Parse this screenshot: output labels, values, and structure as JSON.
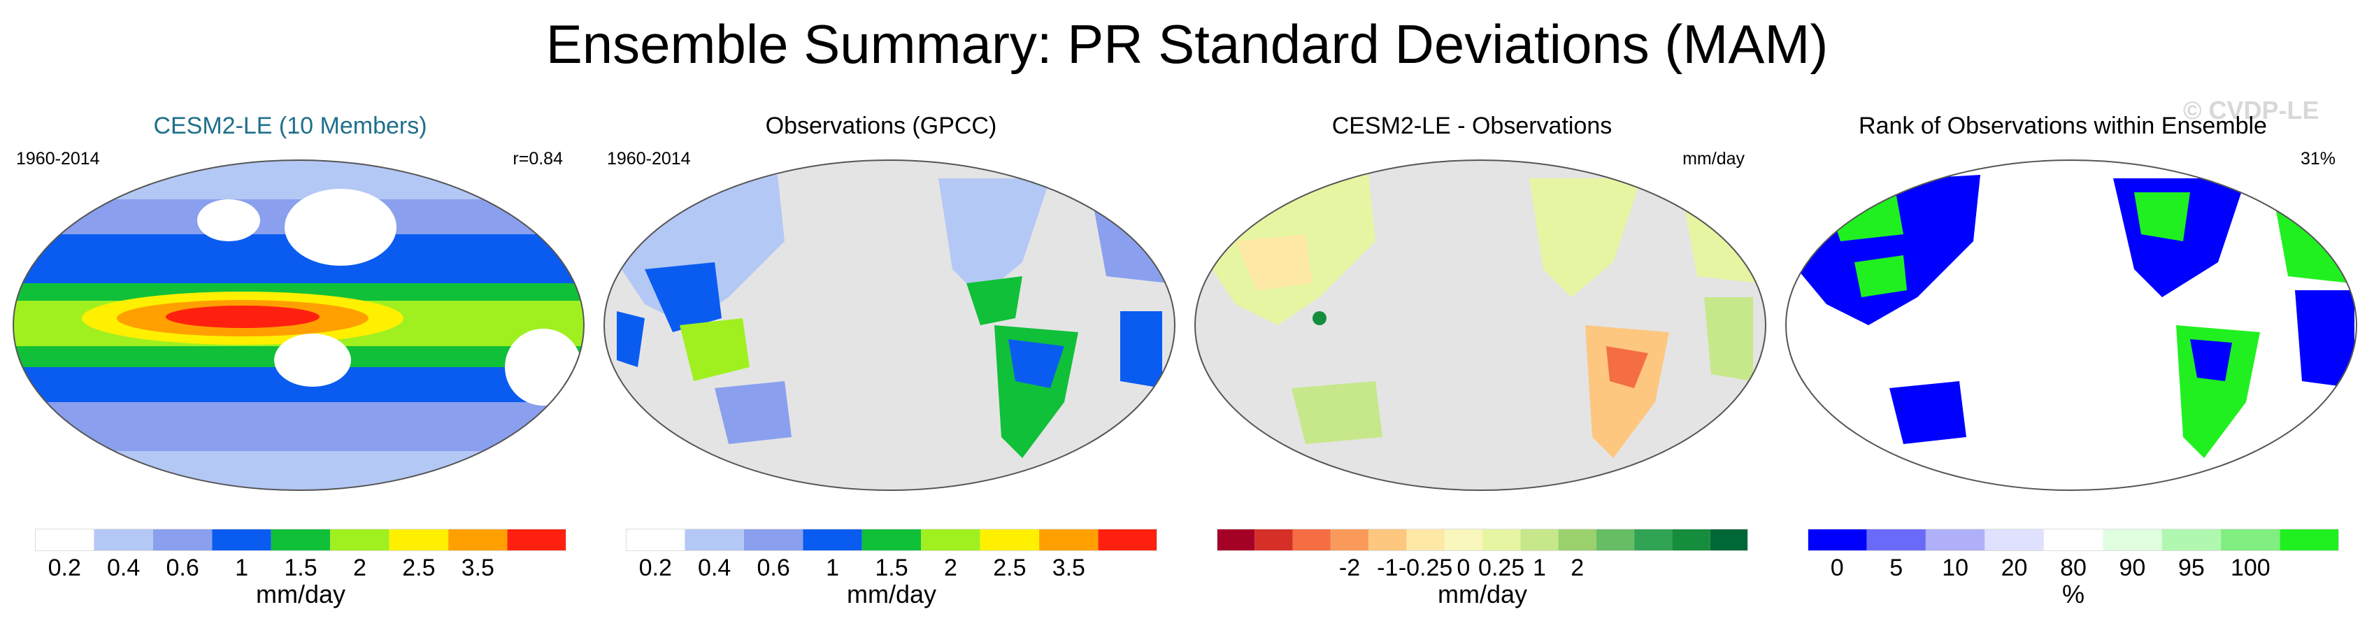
{
  "title": "Ensemble Summary: PR Standard Deviations (MAM)",
  "watermark": "© CVDP-LE",
  "colors": {
    "ocean_missing": "#e4e4e4",
    "coast": "#555555",
    "land_na": "#ffffff"
  },
  "panels": [
    {
      "id": "cesm",
      "title": "CESM2-LE (10 Members)",
      "left_label": "1960-2014",
      "right_label": "r=0.84",
      "unit": "mm/day",
      "colorbar": {
        "colors": [
          "#ffffff",
          "#b4c8f5",
          "#8aa0ee",
          "#0a5cf0",
          "#10c038",
          "#a0f020",
          "#fff000",
          "#ffa000",
          "#ff2010"
        ],
        "labels": [
          "0.2",
          "0.4",
          "0.6",
          "1",
          "1.5",
          "2",
          "2.5",
          "3.5"
        ]
      }
    },
    {
      "id": "obs",
      "title": "Observations (GPCC)",
      "left_label": "1960-2014",
      "right_label": "",
      "unit": "mm/day",
      "colorbar": {
        "colors": [
          "#ffffff",
          "#b4c8f5",
          "#8aa0ee",
          "#0a5cf0",
          "#10c038",
          "#a0f020",
          "#fff000",
          "#ffa000",
          "#ff2010"
        ],
        "labels": [
          "0.2",
          "0.4",
          "0.6",
          "1",
          "1.5",
          "2",
          "2.5",
          "3.5"
        ]
      }
    },
    {
      "id": "diff",
      "title": "CESM2-LE - Observations",
      "left_label": "",
      "right_label": "mm/day",
      "unit": "mm/day",
      "colorbar": {
        "colors": [
          "#a50026",
          "#d62f27",
          "#f46d43",
          "#fa9a5a",
          "#fdc77f",
          "#fee8a6",
          "#f9f7bd",
          "#e6f5a2",
          "#c6e88a",
          "#9ad16d",
          "#66bd63",
          "#31a354",
          "#168d3c",
          "#006837"
        ],
        "labels": [
          "-2",
          "-1",
          "-0.25",
          "0",
          "0.25",
          "1",
          "2"
        ]
      }
    },
    {
      "id": "rank",
      "title": "Rank of Observations within Ensemble",
      "left_label": "",
      "right_label": "31%",
      "unit": "%",
      "colorbar": {
        "colors": [
          "#0000ff",
          "#6a6af8",
          "#b0b0f8",
          "#e0e0ff",
          "#ffffff",
          "#e0ffe0",
          "#b0f8b0",
          "#80ee80",
          "#20f020"
        ],
        "labels": [
          "0",
          "5",
          "10",
          "20",
          "80",
          "90",
          "95",
          "100"
        ]
      }
    }
  ]
}
